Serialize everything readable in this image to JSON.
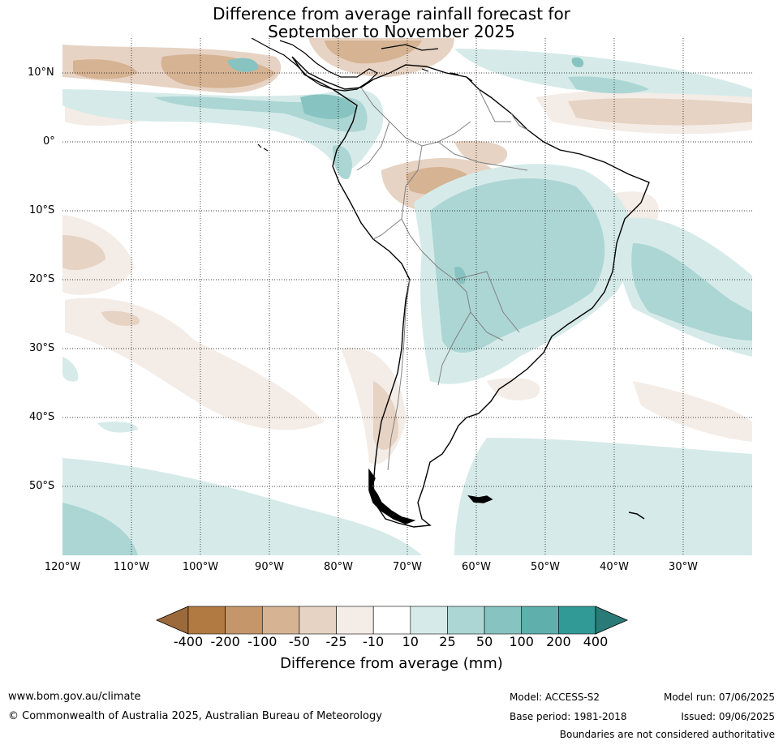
{
  "title": {
    "line1": "Difference from average rainfall forecast for",
    "line2": "September to November 2025"
  },
  "map": {
    "lat_labels": [
      "10°N",
      "0°",
      "10°S",
      "20°S",
      "30°S",
      "40°S",
      "50°S"
    ],
    "lon_labels": [
      "120°W",
      "110°W",
      "100°W",
      "90°W",
      "80°W",
      "70°W",
      "60°W",
      "50°W",
      "40°W",
      "30°W"
    ],
    "land_outline_color": "#000000",
    "border_color": "#808080",
    "grid": "dotted"
  },
  "colorbar": {
    "label": "Difference from average (mm)",
    "ticks": [
      "-400",
      "-200",
      "-100",
      "-50",
      "-25",
      "-10",
      "10",
      "25",
      "50",
      "100",
      "200",
      "400"
    ],
    "colors": [
      "#9c6a3a",
      "#b07a42",
      "#c4966a",
      "#d5b393",
      "#e7d3c3",
      "#f4ece6",
      "#ffffff",
      "#d6ebe9",
      "#acd6d4",
      "#87c3c1",
      "#5fb0ad",
      "#319a96",
      "#2a7b78"
    ]
  },
  "footer": {
    "website": "www.bom.gov.au/climate",
    "copyright": "© Commonwealth of Australia 2025, Australian Bureau of Meteorology",
    "model": "Model: ACCESS-S2",
    "base_period": "Base period: 1981-2018",
    "model_run": "Model run: 07/06/2025",
    "issued": "Issued: 09/06/2025",
    "disclaimer": "Boundaries are not considered authoritative"
  }
}
